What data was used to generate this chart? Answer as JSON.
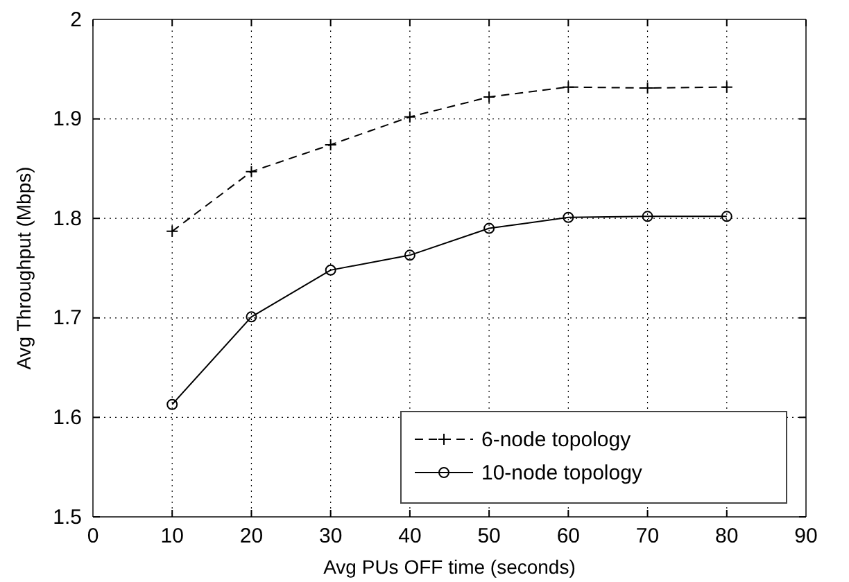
{
  "chart_data": {
    "type": "line",
    "xlabel": "Avg PUs OFF time (seconds)",
    "ylabel": "Avg Throughput (Mbps)",
    "x": [
      10,
      20,
      30,
      40,
      50,
      60,
      70,
      80
    ],
    "series": [
      {
        "name": "6-node topology",
        "color": "#000000",
        "values": [
          1.787,
          1.847,
          1.874,
          1.902,
          1.922,
          1.932,
          1.931,
          1.932
        ],
        "marker": "cross",
        "line_style": "dashed"
      },
      {
        "name": "10-node topology",
        "color": "#000000",
        "values": [
          1.613,
          1.701,
          1.748,
          1.763,
          1.79,
          1.801,
          1.802,
          1.802
        ],
        "marker": "circle",
        "line_style": "solid"
      }
    ],
    "xlim": [
      0,
      90
    ],
    "xticks": [
      0,
      10,
      20,
      30,
      40,
      50,
      60,
      70,
      80,
      90
    ],
    "ylim": [
      1.5,
      2
    ],
    "yticks": [
      {
        "value": 1.5,
        "label": "1.5"
      },
      {
        "value": 1.6,
        "label": "1.6"
      },
      {
        "value": 1.7,
        "label": "1.7"
      },
      {
        "value": 1.8,
        "label": "1.8"
      },
      {
        "value": 1.9,
        "label": "1.9"
      },
      {
        "value": 2,
        "label": "2"
      }
    ],
    "grid": true,
    "legend": "bottom right"
  }
}
